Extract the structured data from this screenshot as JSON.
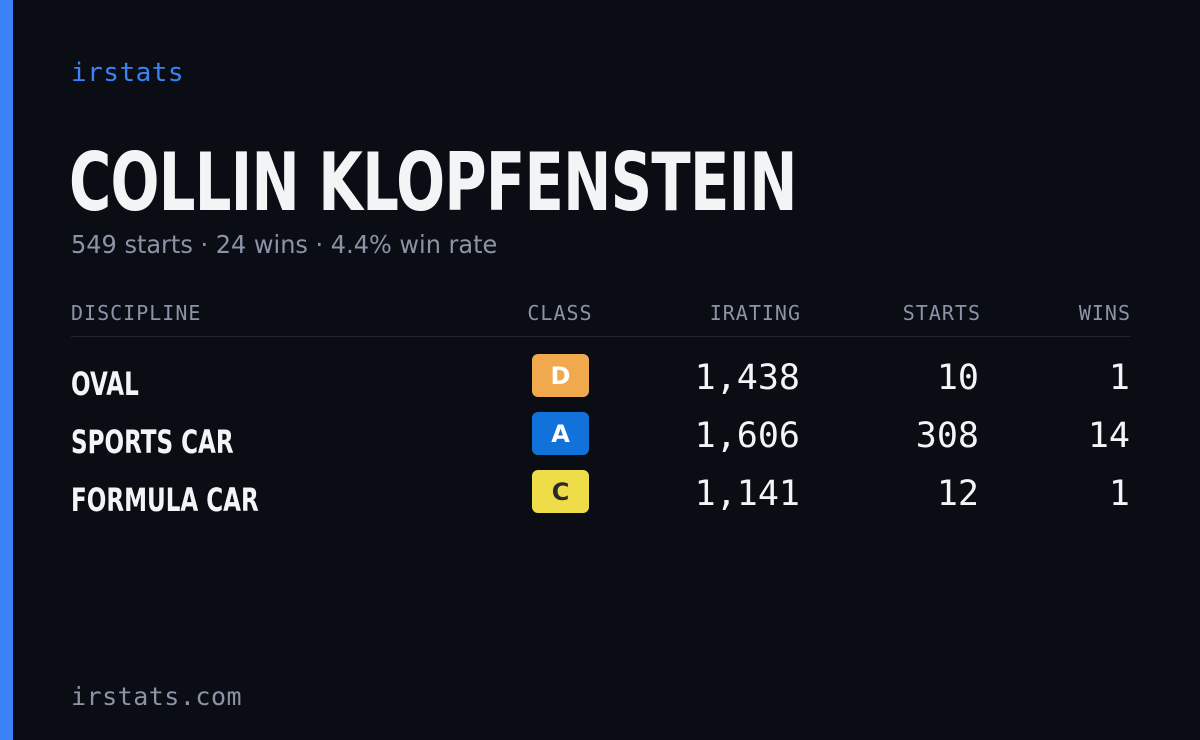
{
  "brand": "irstats",
  "driver": {
    "name": "COLLIN KLOPFENSTEIN",
    "summary": "549 starts · 24 wins · 4.4% win rate"
  },
  "table": {
    "headers": {
      "discipline": "DISCIPLINE",
      "class": "CLASS",
      "irating": "IRATING",
      "starts": "STARTS",
      "wins": "WINS"
    },
    "rows": [
      {
        "discipline": "OVAL",
        "class": "D",
        "class_bg": "#f0a94c",
        "class_fg": "#ffffff",
        "irating": "1,438",
        "starts": "10",
        "wins": "1"
      },
      {
        "discipline": "SPORTS CAR",
        "class": "A",
        "class_bg": "#1173d9",
        "class_fg": "#ffffff",
        "irating": "1,606",
        "starts": "308",
        "wins": "14"
      },
      {
        "discipline": "FORMULA CAR",
        "class": "C",
        "class_bg": "#efdc49",
        "class_fg": "#2a2a2a",
        "irating": "1,141",
        "starts": "12",
        "wins": "1"
      }
    ]
  },
  "footer": "irstats.com",
  "colors": {
    "background": "#0a0d14",
    "accent": "#3b82f6",
    "text_primary": "#f3f4f6",
    "text_muted": "#8b94a7"
  }
}
